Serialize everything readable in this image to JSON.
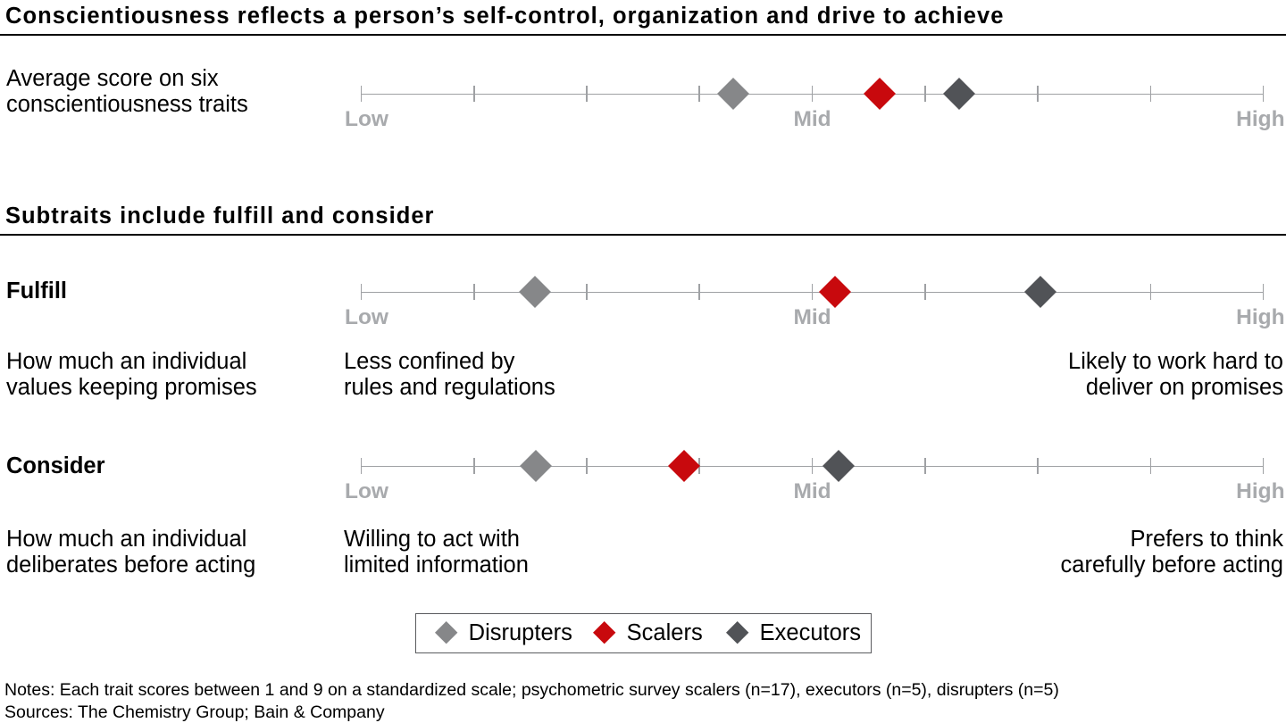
{
  "page": {
    "background_color": "#ffffff",
    "text_color": "#000000"
  },
  "sections": [
    {
      "title": "Conscientiousness reflects a person’s self-control, organization and drive to achieve"
    },
    {
      "title": "Subtraits include fulfill and consider"
    }
  ],
  "legend": {
    "items": [
      {
        "label": "Disrupters",
        "icon": "diamond",
        "color": "#868789"
      },
      {
        "label": "Scalers",
        "icon": "diamond",
        "color": "#c8090d"
      },
      {
        "label": "Executors",
        "icon": "diamond",
        "color": "#515357"
      }
    ]
  },
  "notes": {
    "line1": "Notes: Each trait scores between 1 and 9 on a standardized scale; psychometric survey scalers (n=17), executors (n=5), disrupters (n=5)",
    "line2": "Sources: The Chemistry Group; Bain & Company"
  },
  "chart_data": {
    "type": "scatter",
    "subtype": "dot-plot-diamond-markers",
    "title": "Conscientiousness reflects a person’s self-control, organization and drive to achieve",
    "subtitle": "Subtraits include fulfill and consider",
    "axis": {
      "min": 1,
      "max": 9,
      "tick_count": 9,
      "labels": [
        "Low",
        "Mid",
        "High"
      ],
      "label_positions": [
        1,
        5,
        9
      ],
      "grid": false
    },
    "legend_position": "bottom-center",
    "series": [
      {
        "name": "Disrupters",
        "color": "#868789",
        "values": [
          4.3,
          2.54,
          2.55
        ]
      },
      {
        "name": "Scalers",
        "color": "#c8090d",
        "values": [
          5.6,
          5.2,
          3.86
        ]
      },
      {
        "name": "Executors",
        "color": "#515357",
        "values": [
          6.3,
          7.02,
          5.23
        ]
      }
    ],
    "rows": [
      {
        "id": "average",
        "label_lines": [
          "Average score on six",
          "conscientiousness traits"
        ],
        "label_bold": false,
        "scores": {
          "Disrupters": 4.3,
          "Scalers": 5.6,
          "Executors": 6.3
        }
      },
      {
        "id": "fulfill",
        "label_lines": [
          "Fulfill"
        ],
        "label_bold": true,
        "scores": {
          "Disrupters": 2.54,
          "Scalers": 5.2,
          "Executors": 7.02
        },
        "descriptions": [
          {
            "align": "left",
            "lines": [
              "How much an individual",
              "values keeping promises"
            ]
          },
          {
            "align": "left",
            "lines": [
              "Less confined by",
              "rules and regulations"
            ]
          },
          {
            "align": "right",
            "lines": [
              "Likely to work hard to",
              "deliver on promises"
            ]
          }
        ]
      },
      {
        "id": "consider",
        "label_lines": [
          "Consider"
        ],
        "label_bold": true,
        "scores": {
          "Disrupters": 2.55,
          "Scalers": 3.86,
          "Executors": 5.23
        },
        "descriptions": [
          {
            "align": "left",
            "lines": [
              "How much an individual",
              "deliberates before acting"
            ]
          },
          {
            "align": "left",
            "lines": [
              "Willing to act with",
              "limited information"
            ]
          },
          {
            "align": "right",
            "lines": [
              "Prefers to think",
              "carefully before acting"
            ]
          }
        ]
      }
    ]
  }
}
